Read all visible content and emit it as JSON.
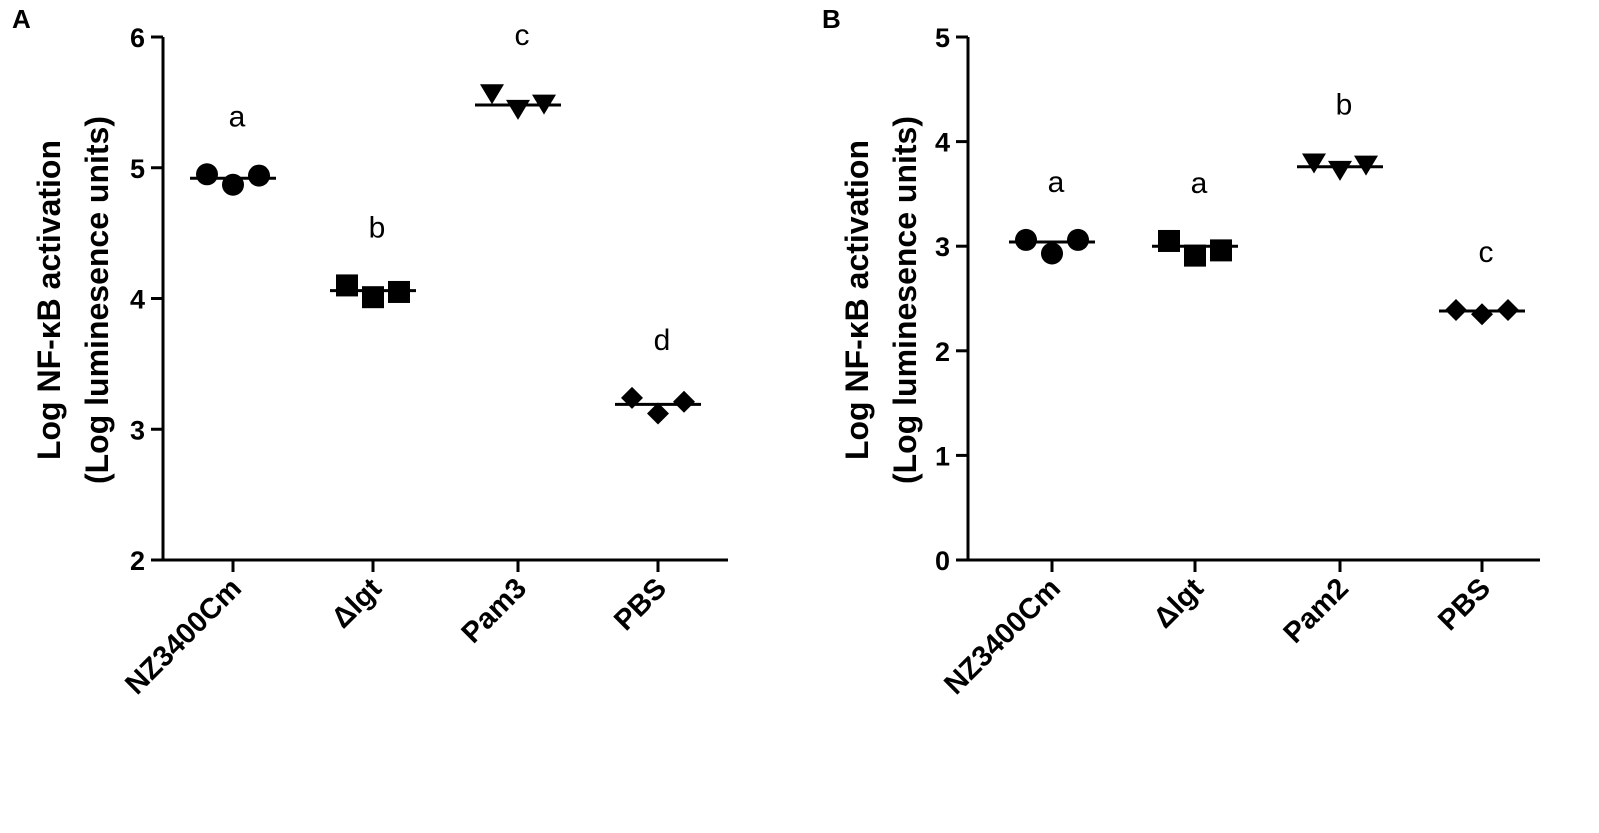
{
  "chart_data": [
    {
      "panel": "A",
      "type": "scatter",
      "ylabel_line1": "Log NF-κB activation",
      "ylabel_line2": "(Log luminesence units)",
      "ylim": [
        2,
        6
      ],
      "yticks": [
        "2",
        "3",
        "4",
        "5",
        "6"
      ],
      "categories": [
        "NZ3400Cm",
        "Δlgt",
        "Pam3",
        "PBS"
      ],
      "markers": [
        "circle",
        "square",
        "triangle-down",
        "diamond"
      ],
      "significance": [
        "a",
        "b",
        "c",
        "d"
      ],
      "values": [
        [
          4.95,
          4.87,
          4.94
        ],
        [
          4.1,
          4.01,
          4.05
        ],
        [
          5.57,
          5.45,
          5.49
        ],
        [
          3.24,
          3.12,
          3.21
        ]
      ],
      "medians": [
        4.92,
        4.06,
        5.48,
        3.19
      ]
    },
    {
      "panel": "B",
      "type": "scatter",
      "ylabel_line1": "Log NF-κB activation",
      "ylabel_line2": "(Log luminesence units)",
      "ylim": [
        0,
        5
      ],
      "yticks": [
        "0",
        "1",
        "2",
        "3",
        "4",
        "5"
      ],
      "categories": [
        "NZ3400Cm",
        "Δlgt",
        "Pam2",
        "PBS"
      ],
      "markers": [
        "circle",
        "square",
        "triangle-down",
        "diamond"
      ],
      "significance": [
        "a",
        "a",
        "b",
        "c"
      ],
      "values": [
        [
          3.06,
          2.93,
          3.06
        ],
        [
          3.05,
          2.91,
          2.96
        ],
        [
          3.8,
          3.73,
          3.78
        ],
        [
          2.39,
          2.35,
          2.39
        ]
      ],
      "medians": [
        3.04,
        3.0,
        3.76,
        2.38
      ]
    }
  ]
}
